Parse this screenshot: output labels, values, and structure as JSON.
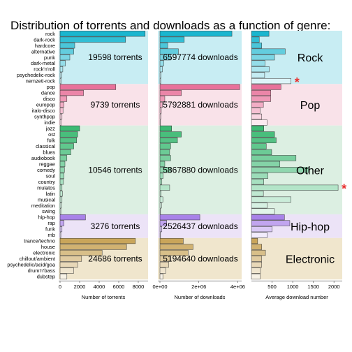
{
  "chart_data": {
    "type": "bar",
    "title": "Distribution of torrents and downloads as a function of genre:",
    "groups": [
      {
        "name": "Rock",
        "color": "#1ab6cf",
        "bg": "#c8edf3",
        "torrents_label": "19598  torrents",
        "downloads_label": "6597774  downloads",
        "genres": [
          "rock",
          "dark-rock",
          "hardcore",
          "alternative",
          "punk",
          "dark-metal",
          "rock'n'roll",
          "psychedelic-rock",
          "nemzeti-rock"
        ],
        "torrents": [
          8700,
          6700,
          1500,
          1400,
          1000,
          550,
          280,
          170,
          100
        ],
        "downloads": [
          3700000,
          1250000,
          400000,
          950000,
          550000,
          200000,
          130000,
          55000,
          40000
        ],
        "avg_downloads": [
          425,
          190,
          250,
          820,
          560,
          330,
          430,
          320,
          960
        ]
      },
      {
        "name": "Pop",
        "color": "#e8719a",
        "bg": "#f9e2e9",
        "torrents_label": "9739  torrents",
        "downloads_label": "5792881  downloads",
        "genres": [
          "pop",
          "dance",
          "disco",
          "europop",
          "italo-disco",
          "synthpop",
          "indie"
        ],
        "torrents": [
          5700,
          2400,
          700,
          400,
          300,
          200,
          120
        ],
        "downloads": [
          4100000,
          1100000,
          250000,
          130000,
          70000,
          50000,
          30000
        ],
        "avg_downloads": [
          715,
          470,
          470,
          290,
          210,
          250,
          380
        ]
      },
      {
        "name": "Other",
        "color": "#3dba74",
        "bg": "#dcefe2",
        "torrents_label": "10546  torrents",
        "downloads_label": "5867880  downloads",
        "genres": [
          "jazz",
          "ost",
          "folk",
          "classical",
          "blues",
          "audiobook",
          "reggae",
          "comedy",
          "soul",
          "country",
          "mulatos",
          "latin",
          "musical",
          "meditation",
          "swing"
        ],
        "torrents": [
          2000,
          1800,
          1700,
          1400,
          1100,
          700,
          500,
          450,
          400,
          350,
          200,
          250,
          200,
          150,
          80
        ],
        "downloads": [
          600000,
          1100000,
          900000,
          550000,
          500000,
          550000,
          250000,
          550000,
          160000,
          100000,
          500000,
          60000,
          150000,
          80000,
          30000
        ],
        "avg_downloads": [
          300,
          560,
          600,
          360,
          490,
          1080,
          690,
          1380,
          400,
          300,
          2100,
          290,
          960,
          380,
          560
        ]
      },
      {
        "name": "Hip-hop",
        "color": "#a882e8",
        "bg": "#ece3f7",
        "torrents_label": "3276  torrents",
        "downloads_label": "2526437  downloads",
        "genres": [
          "hip-hop",
          "rap",
          "funk",
          "rnb"
        ],
        "torrents": [
          2600,
          400,
          200,
          80
        ],
        "downloads": [
          2050000,
          350000,
          100000,
          30000
        ],
        "avg_downloads": [
          800,
          930,
          500,
          380
        ]
      },
      {
        "name": "Electronic",
        "color": "#c9a55a",
        "bg": "#f0e6cd",
        "torrents_label": "24686  torrents",
        "downloads_label": "5194640  downloads",
        "genres": [
          "trance/techno",
          "house",
          "electronic",
          "chillout/ambient",
          "psychedelic/acid/goa",
          "drum'n'bass",
          "dubstep"
        ],
        "torrents": [
          7700,
          6800,
          4300,
          2200,
          1800,
          1400,
          700
        ],
        "downloads": [
          1200000,
          1700000,
          1450000,
          550000,
          450000,
          300000,
          150000
        ],
        "avg_downloads": [
          150,
          250,
          340,
          250,
          250,
          220,
          210
        ]
      }
    ],
    "panels": [
      {
        "xlabel": "Number of torrents",
        "key": "torrents",
        "max": 9000,
        "ticks": [
          {
            "v": 0,
            "label": "0"
          },
          {
            "v": 2000,
            "label": "2000"
          },
          {
            "v": 4000,
            "label": "4000"
          },
          {
            "v": 6000,
            "label": "6000"
          },
          {
            "v": 8000,
            "label": "8000"
          }
        ]
      },
      {
        "xlabel": "Number of downloads",
        "key": "downloads",
        "max": 4200000,
        "ticks": [
          {
            "v": 0,
            "label": "0e+00"
          },
          {
            "v": 2000000,
            "label": "2e+06"
          },
          {
            "v": 4000000,
            "label": "4e+06"
          }
        ]
      },
      {
        "xlabel": "Average download number",
        "key": "avg_downloads",
        "max": 2200,
        "ticks": [
          {
            "v": 500,
            "label": "500"
          },
          {
            "v": 1000,
            "label": "1000"
          },
          {
            "v": 1500,
            "label": "1500"
          },
          {
            "v": 2000,
            "label": "2000"
          }
        ]
      }
    ],
    "highlighted": [
      "nemzeti-rock",
      "mulatos"
    ],
    "star_symbol": "*"
  }
}
